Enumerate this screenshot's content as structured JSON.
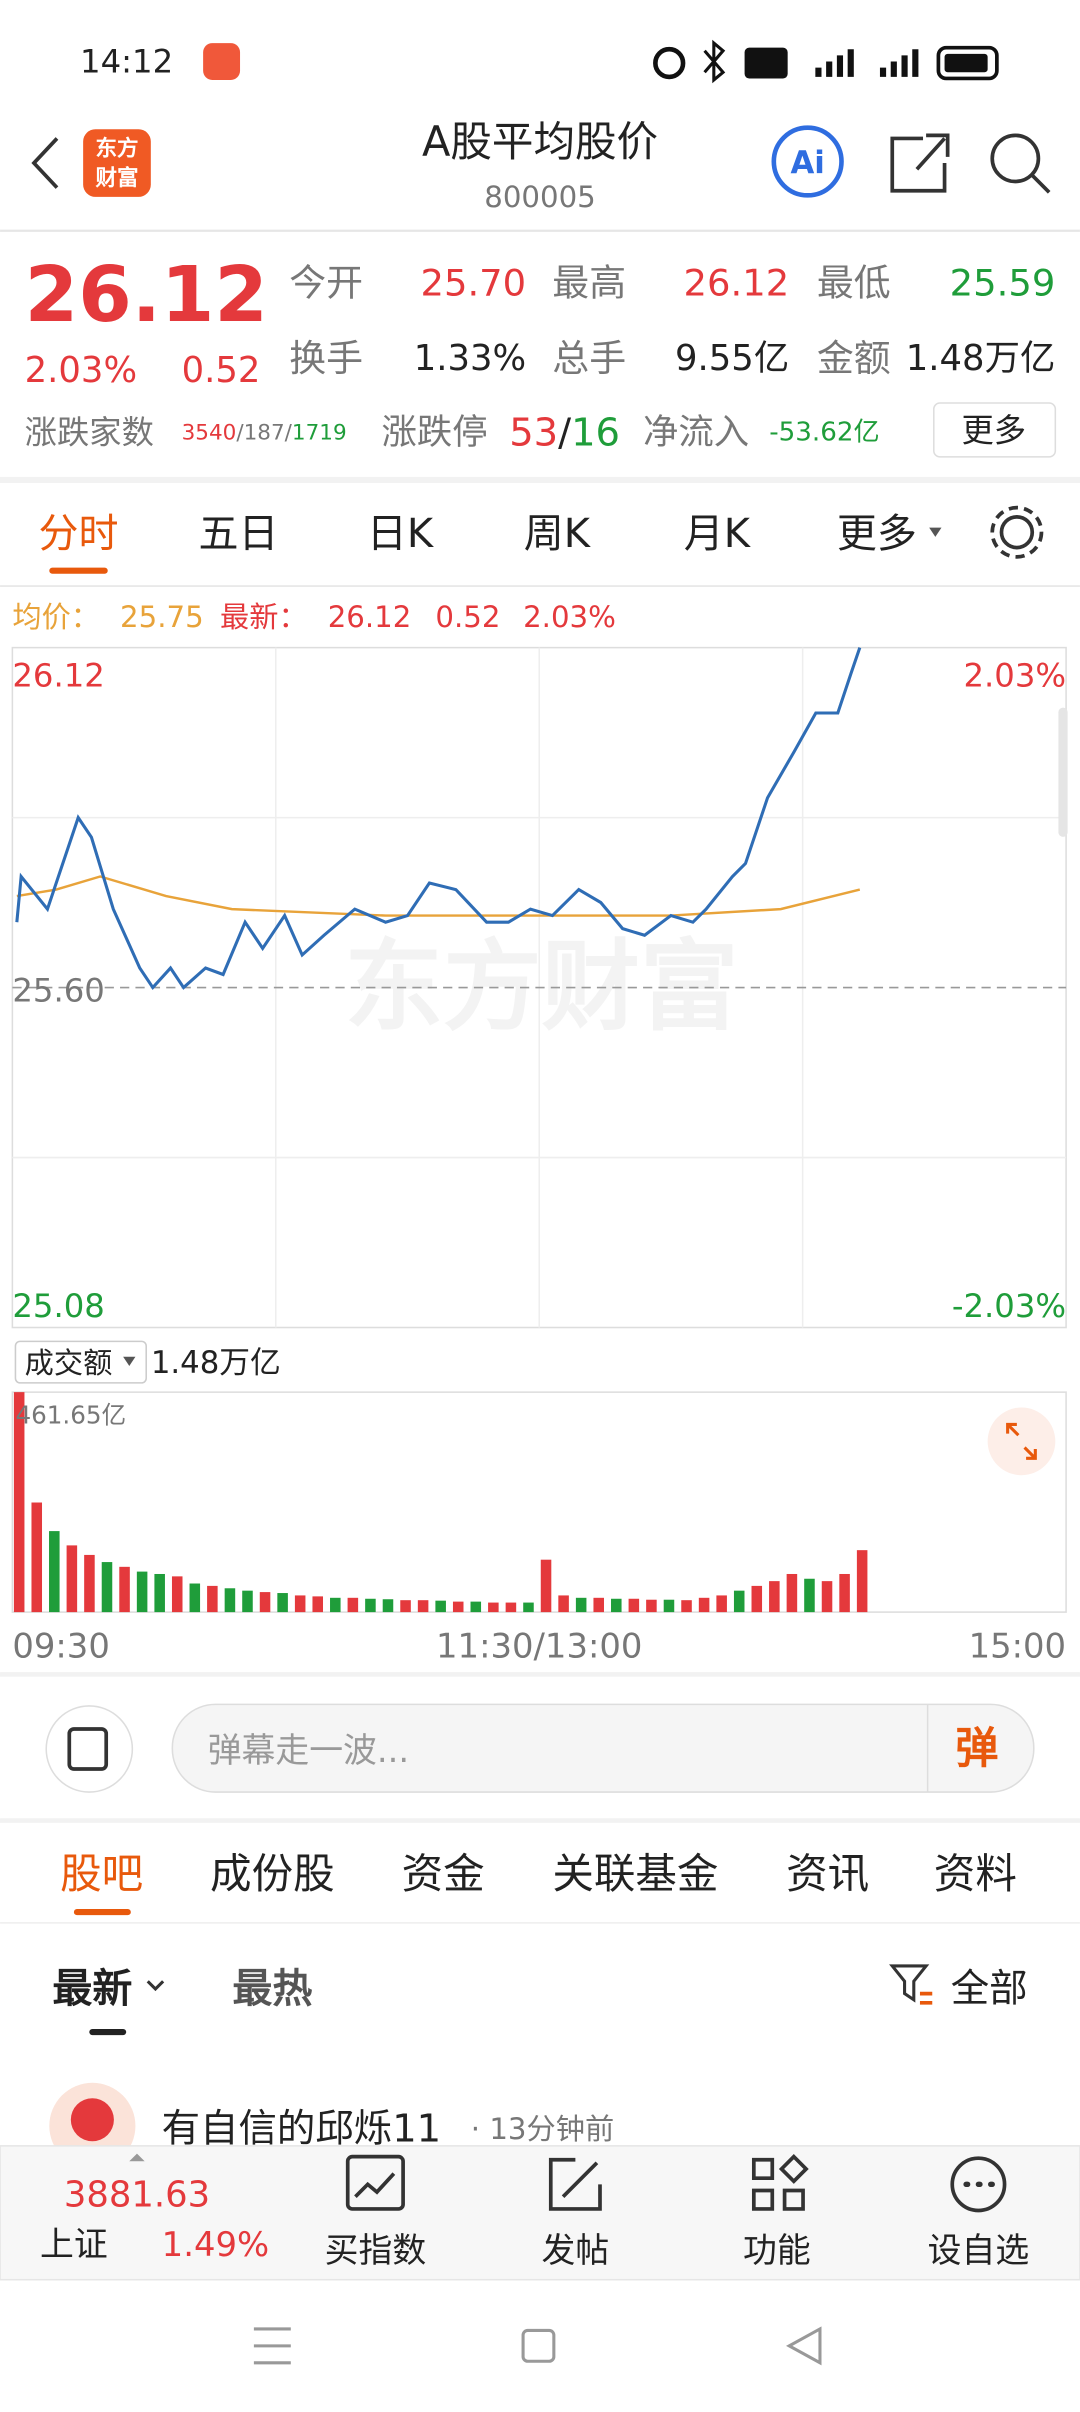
{
  "status": {
    "time": "14:12"
  },
  "header": {
    "logo": [
      "东方",
      "财富"
    ],
    "title": "A股平均股价",
    "code": "800005",
    "ai": "Ai"
  },
  "quote": {
    "price": "26.12",
    "change_pct": "2.03%",
    "change": "0.52",
    "fields": [
      {
        "label": "今开",
        "value": "25.70"
      },
      {
        "label": "最高",
        "value": "26.12"
      },
      {
        "label": "最低",
        "value": "25.59"
      },
      {
        "label": "换手",
        "value": "1.33%"
      },
      {
        "label": "总手",
        "value": "9.55亿"
      },
      {
        "label": "金额",
        "value": "1.48万亿"
      }
    ],
    "breadth": {
      "label": "涨跌家数",
      "up": "3540",
      "flat": "187",
      "down": "1719",
      "sep": "/"
    },
    "limits": {
      "label": "涨跌停",
      "up": "53",
      "down": "16"
    },
    "flow": {
      "label": "净流入",
      "value": "-53.62亿"
    },
    "more": "更多"
  },
  "tabs": [
    "分时",
    "五日",
    "日K",
    "周K",
    "月K",
    "更多"
  ],
  "legend": {
    "avg_label": "均价：",
    "avg": "25.75",
    "last_label": "最新：",
    "last": "26.12",
    "change": "0.52",
    "pct": "2.03%"
  },
  "chart": {
    "type": "line",
    "watermark": "东方财富",
    "xlim": [
      0,
      240
    ],
    "xticks": [
      {
        "value": 0,
        "label": "09:30"
      },
      {
        "value": 120,
        "label": "11:30/13:00"
      },
      {
        "value": 240,
        "label": "15:00"
      }
    ],
    "xgrid": [
      60,
      120,
      180
    ],
    "ylim": [
      25.08,
      26.12
    ],
    "yticks": [
      26.12,
      {
        "value": 25.6,
        "label": "25.60"
      },
      25.08
    ],
    "ygrid": [
      25.86,
      25.34
    ],
    "y2lim": [
      -2.03,
      2.03
    ],
    "y2ticks": [
      {
        "value": 2.03,
        "label": "2.03%"
      },
      {
        "value": -2.03,
        "label": "-2.03%"
      }
    ],
    "series": [
      {
        "color": "#2f6db5",
        "x": [
          1,
          2,
          8,
          15,
          18,
          23,
          29,
          32,
          36,
          39,
          44,
          48,
          53,
          57,
          62,
          66,
          71,
          78,
          85,
          90,
          95,
          101,
          108,
          113,
          118,
          123,
          129,
          134,
          139,
          144,
          150,
          155,
          158,
          164,
          167,
          172,
          178,
          183,
          188,
          191,
          193
        ],
        "values": [
          25.7,
          25.77,
          25.72,
          25.86,
          25.83,
          25.72,
          25.63,
          25.6,
          25.63,
          25.6,
          25.63,
          25.62,
          25.7,
          25.66,
          25.71,
          25.65,
          25.68,
          25.72,
          25.7,
          25.71,
          25.76,
          25.75,
          25.7,
          25.7,
          25.72,
          25.71,
          25.75,
          25.73,
          25.69,
          25.68,
          25.71,
          25.7,
          25.72,
          25.77,
          25.79,
          25.89,
          25.96,
          26.02,
          26.02,
          26.08,
          26.12
        ]
      },
      {
        "color": "#e8a33a",
        "x": [
          1,
          10,
          20,
          35,
          50,
          85,
          120,
          150,
          175,
          193
        ],
        "values": [
          25.74,
          25.75,
          25.77,
          25.74,
          25.72,
          25.71,
          25.71,
          25.71,
          25.72,
          25.75
        ]
      }
    ]
  },
  "volume": {
    "type": "bar",
    "label": "成交额",
    "total": "1.48万亿",
    "ylim": [
      0,
      461.65
    ],
    "yticks": [
      {
        "value": 461.65,
        "label": "461.65亿"
      }
    ],
    "palette": [
      "#e4393c",
      "#1f9d3a"
    ],
    "x": [
      0,
      4,
      8,
      12,
      16,
      20,
      24,
      28,
      32,
      36,
      40,
      44,
      48,
      52,
      56,
      60,
      64,
      68,
      72,
      76,
      80,
      84,
      88,
      92,
      96,
      100,
      104,
      108,
      112,
      116,
      120,
      124,
      128,
      132,
      136,
      140,
      144,
      148,
      152,
      156,
      160,
      164,
      168,
      172,
      176,
      180,
      184,
      188,
      192
    ],
    "values": [
      461.65,
      230,
      170,
      140,
      120,
      105,
      95,
      85,
      80,
      75,
      60,
      55,
      50,
      45,
      42,
      40,
      35,
      33,
      30,
      30,
      28,
      27,
      25,
      25,
      24,
      22,
      22,
      20,
      20,
      20,
      110,
      35,
      30,
      30,
      28,
      28,
      26,
      26,
      25,
      30,
      35,
      45,
      55,
      65,
      80,
      70,
      65,
      80,
      130
    ],
    "colors": [
      0,
      0,
      1,
      0,
      0,
      1,
      0,
      1,
      1,
      0,
      1,
      0,
      1,
      1,
      0,
      1,
      0,
      0,
      1,
      0,
      1,
      1,
      0,
      0,
      1,
      0,
      1,
      0,
      0,
      1,
      0,
      0,
      1,
      0,
      1,
      0,
      0,
      1,
      0,
      0,
      0,
      1,
      0,
      0,
      0,
      1,
      0,
      0,
      0
    ]
  },
  "comment": {
    "placeholder": "弹幕走一波...",
    "button": "弹"
  },
  "tabs2": [
    "股吧",
    "成份股",
    "资金",
    "关联基金",
    "资讯",
    "资料"
  ],
  "sort": {
    "items": [
      "最新",
      "最热"
    ],
    "filter": "全部"
  },
  "post": {
    "user": "有自信的邱烁11",
    "time": "· 13分钟前"
  },
  "bottom": {
    "index_value": "3881.63",
    "index_name": "上证",
    "index_pct": "1.49%",
    "buttons": [
      "买指数",
      "发帖",
      "功能",
      "设自选"
    ]
  }
}
